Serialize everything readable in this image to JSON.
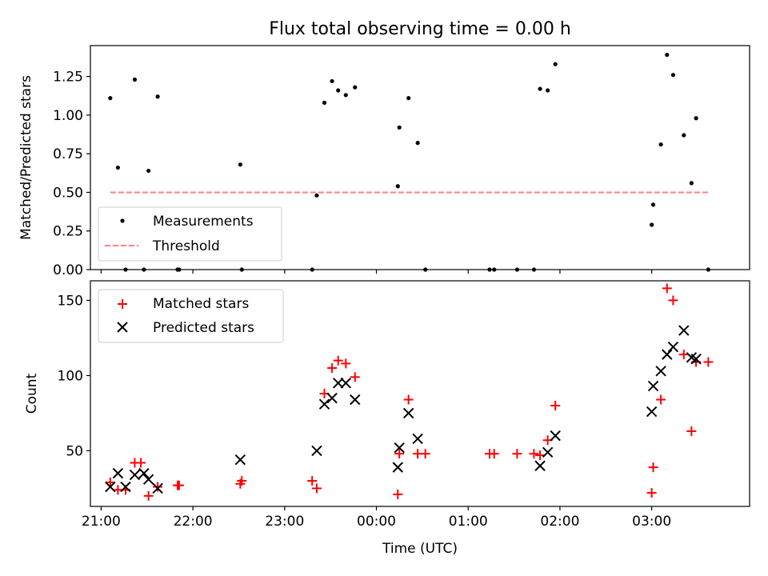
{
  "chart_data": [
    {
      "type": "scatter",
      "title": "Flux total observing time = 0.00 h",
      "xlabel": "",
      "ylabel": "Matched/Predicted stars",
      "x_is_time": true,
      "xlim": [
        "20:53",
        "04:04"
      ],
      "ylim": [
        0,
        1.45
      ],
      "yticks": [
        0.0,
        0.25,
        0.5,
        0.75,
        1.0,
        1.25
      ],
      "ytick_labels": [
        "0.00",
        "0.25",
        "0.50",
        "0.75",
        "1.00",
        "1.25"
      ],
      "xticks": [
        "21:00",
        "22:00",
        "23:00",
        "00:00",
        "01:00",
        "02:00",
        "03:00"
      ],
      "legend_position": "lower-left",
      "series": [
        {
          "name": "Measurements",
          "marker": "dot",
          "color": "#000000",
          "x": [
            "21:06",
            "21:11",
            "21:16",
            "21:22",
            "21:28",
            "21:31",
            "21:37",
            "21:50",
            "21:51",
            "22:31",
            "22:32",
            "23:18",
            "23:21",
            "23:26",
            "23:31",
            "23:35",
            "23:40",
            "23:46",
            "00:14",
            "00:15",
            "00:21",
            "00:27",
            "00:32",
            "01:14",
            "01:17",
            "01:32",
            "01:43",
            "01:47",
            "01:52",
            "01:57",
            "03:00",
            "03:01",
            "03:06",
            "03:10",
            "03:14",
            "03:21",
            "03:26",
            "03:29",
            "03:37"
          ],
          "y": [
            1.11,
            0.66,
            0.0,
            1.23,
            0.0,
            0.64,
            1.12,
            0.0,
            0.0,
            0.68,
            0.0,
            0.0,
            0.48,
            1.08,
            1.22,
            1.16,
            1.13,
            1.18,
            0.54,
            0.92,
            1.11,
            0.82,
            0.0,
            0.0,
            0.0,
            0.0,
            0.0,
            1.17,
            1.16,
            1.33,
            0.29,
            0.42,
            0.81,
            1.39,
            1.26,
            0.87,
            0.56,
            0.98,
            0.0
          ]
        },
        {
          "name": "Threshold",
          "marker": "dashed-line",
          "color": "#ff8080",
          "x": [
            "21:06",
            "03:37"
          ],
          "y": [
            0.5,
            0.5
          ]
        }
      ]
    },
    {
      "type": "scatter",
      "title": "",
      "xlabel": "Time (UTC)",
      "ylabel": "Count",
      "x_is_time": true,
      "xlim": [
        "20:53",
        "04:04"
      ],
      "ylim": [
        13,
        163
      ],
      "yticks": [
        50,
        100,
        150
      ],
      "ytick_labels": [
        "50",
        "100",
        "150"
      ],
      "xticks": [
        "21:00",
        "22:00",
        "23:00",
        "00:00",
        "01:00",
        "02:00",
        "03:00"
      ],
      "legend_position": "upper-left",
      "series": [
        {
          "name": "Matched stars",
          "marker": "plus",
          "color": "#ff0000",
          "x": [
            "21:06",
            "21:11",
            "21:16",
            "21:22",
            "21:26",
            "21:31",
            "21:37",
            "21:50",
            "21:51",
            "22:31",
            "22:32",
            "23:18",
            "23:21",
            "23:26",
            "23:31",
            "23:35",
            "23:40",
            "23:46",
            "00:14",
            "00:15",
            "00:21",
            "00:27",
            "00:32",
            "01:14",
            "01:17",
            "01:32",
            "01:43",
            "01:47",
            "01:52",
            "01:57",
            "03:00",
            "03:01",
            "03:06",
            "03:10",
            "03:14",
            "03:21",
            "03:26",
            "03:29",
            "03:37"
          ],
          "y": [
            29,
            24,
            24,
            42,
            42,
            20,
            26,
            27,
            27,
            28,
            30,
            30,
            25,
            88,
            105,
            110,
            108,
            99,
            21,
            48,
            84,
            48,
            48,
            48,
            48,
            48,
            48,
            47,
            57,
            80,
            22,
            39,
            84,
            158,
            150,
            114,
            63,
            109,
            109
          ]
        },
        {
          "name": "Predicted stars",
          "marker": "x",
          "color": "#000000",
          "x": [
            "21:06",
            "21:11",
            "21:16",
            "21:22",
            "21:28",
            "21:31",
            "21:37",
            "22:31",
            "23:21",
            "23:26",
            "23:31",
            "23:35",
            "23:40",
            "23:46",
            "00:14",
            "00:15",
            "00:21",
            "00:27",
            "01:47",
            "01:52",
            "01:57",
            "03:00",
            "03:01",
            "03:06",
            "03:10",
            "03:14",
            "03:21",
            "03:26",
            "03:29"
          ],
          "y": [
            26,
            35,
            26,
            34,
            35,
            31,
            25,
            44,
            50,
            81,
            85,
            95,
            95,
            84,
            39,
            52,
            75,
            58,
            40,
            49,
            60,
            76,
            93,
            103,
            114,
            119,
            130,
            112,
            111
          ]
        }
      ]
    }
  ]
}
